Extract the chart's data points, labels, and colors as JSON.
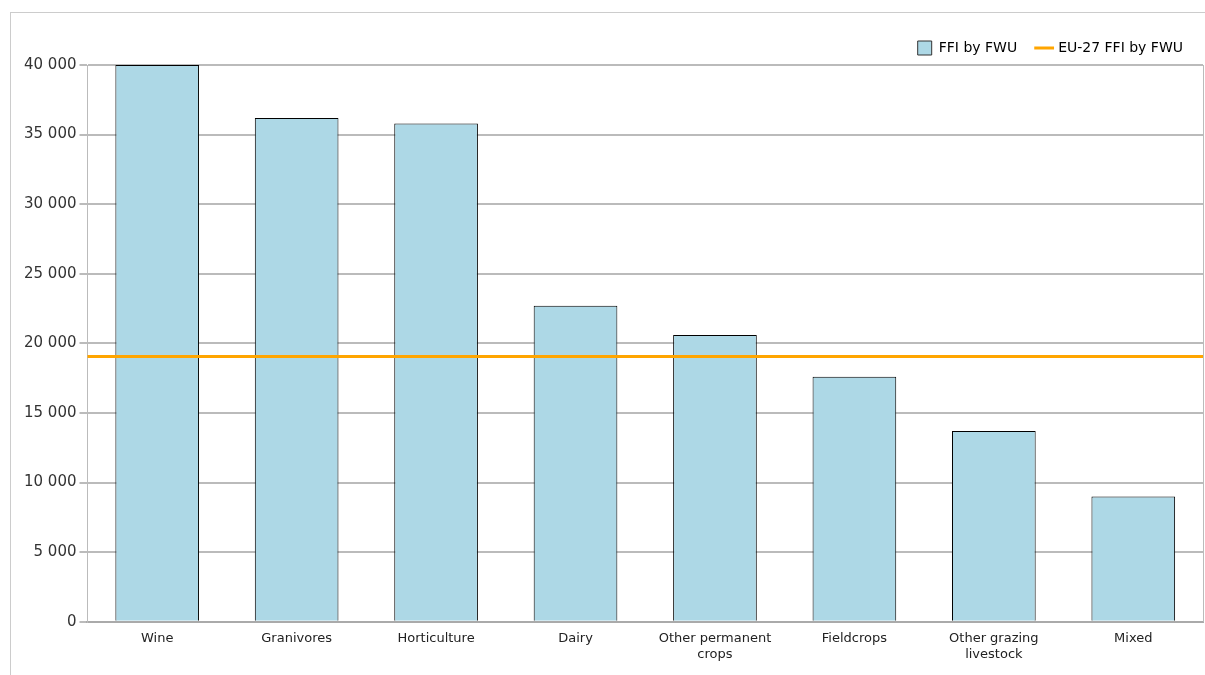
{
  "chart_data": {
    "type": "bar",
    "categories": [
      "Wine",
      "Granivores",
      "Horticulture",
      "Dairy",
      "Other permanent crops",
      "Fieldcrops",
      "Other grazing livestock",
      "Mixed"
    ],
    "series": [
      {
        "name": "FFI by FWU",
        "color": "#add8e6",
        "values": [
          40000,
          36200,
          35800,
          22700,
          20600,
          17600,
          13700,
          9000
        ]
      }
    ],
    "ylim": [
      0,
      40000
    ],
    "yticks": [
      {
        "value": 0,
        "label": "0"
      },
      {
        "value": 5000,
        "label": "5 000"
      },
      {
        "value": 10000,
        "label": "10 000"
      },
      {
        "value": 15000,
        "label": "15 000"
      },
      {
        "value": 20000,
        "label": "20 000"
      },
      {
        "value": 25000,
        "label": "25 000"
      },
      {
        "value": 30000,
        "label": "30 000"
      },
      {
        "value": 35000,
        "label": "35 000"
      },
      {
        "value": 40000,
        "label": "40 000"
      }
    ],
    "ref_lines": [
      {
        "axis": "y",
        "value": 19050,
        "label": "EU-27 FFI by FWU",
        "color": "#ffa500",
        "line_style": "solid"
      }
    ],
    "grid": "y",
    "legend": "top right"
  }
}
